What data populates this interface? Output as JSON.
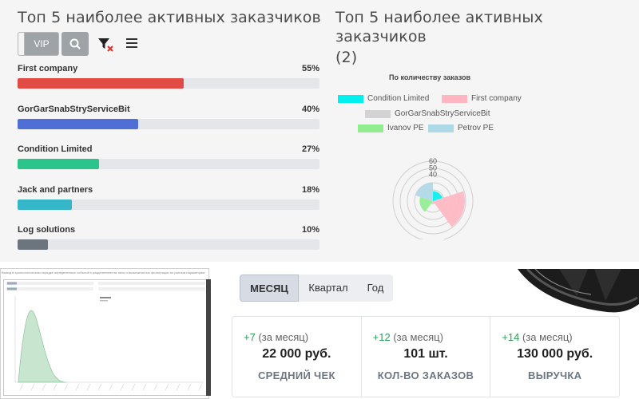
{
  "left_panel": {
    "title": "Топ 5 наиболее активных заказчиков",
    "vip_label": "VIP",
    "icons": [
      "search-icon",
      "filter-clear-icon",
      "menu-icon"
    ],
    "bars": [
      {
        "name": "First company",
        "percent_label": "55%",
        "value": 55,
        "color": "#e24b43"
      },
      {
        "name": "GorGarSnabStryServiceBit",
        "percent_label": "40%",
        "value": 40,
        "color": "#4f6fd6"
      },
      {
        "name": "Condition Limited",
        "percent_label": "27%",
        "value": 27,
        "color": "#2bc48a"
      },
      {
        "name": "Jack and partners",
        "percent_label": "18%",
        "value": 18,
        "color": "#35b6c9"
      },
      {
        "name": "Log solutions",
        "percent_label": "10%",
        "value": 10,
        "color": "#6c757d"
      }
    ]
  },
  "right_panel": {
    "title_line1": "Топ 5 наиболее активных заказчиков",
    "title_line2": "(2)",
    "chart_data": {
      "type": "polar-area",
      "title": "По количеству заказов",
      "legend": [
        {
          "name": "Condition Limited",
          "color": "#00f0f0"
        },
        {
          "name": "First company",
          "color": "#ffb6c1"
        },
        {
          "name": "GorGarSnabStryServiceBit",
          "color": "#d3d3d3"
        },
        {
          "name": "Ivanov PE",
          "color": "#90ee90"
        },
        {
          "name": "Petrov PE",
          "color": "#add8e6"
        }
      ],
      "tick_labels": [
        "60",
        "50",
        "40"
      ],
      "scale_max": 60,
      "series": [
        {
          "name": "Condition Limited",
          "value": 15
        },
        {
          "name": "First company",
          "value": 48
        },
        {
          "name": "GorGarSnabStryServiceBit",
          "value": 5
        },
        {
          "name": "Ivanov PE",
          "value": 20
        },
        {
          "name": "Petrov PE",
          "value": 28
        }
      ]
    }
  },
  "bottom_left": {
    "caption": "Вывод в хронологическом порядке определенных событий с разделением на типы и возможностью фильтрации по разным параметрам"
  },
  "bottom_right": {
    "periods": [
      "МЕСЯЦ",
      "Квартал",
      "Год"
    ],
    "active_period": "МЕСЯЦ",
    "kpis": [
      {
        "delta_plus": "+7",
        "delta_suffix": " (за месяц)",
        "value": "22 000 руб.",
        "label": "СРЕДНИЙ ЧЕК"
      },
      {
        "delta_plus": "+12",
        "delta_suffix": " (за месяц)",
        "value": "101 шт.",
        "label": "КОЛ-ВО ЗАКАЗОВ"
      },
      {
        "delta_plus": "+14",
        "delta_suffix": " (за месяц)",
        "value": "130 000 руб.",
        "label": "ВЫРУЧКА"
      }
    ]
  }
}
